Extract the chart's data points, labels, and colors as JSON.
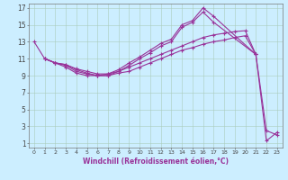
{
  "xlabel": "Windchill (Refroidissement éolien,°C)",
  "bg_color": "#cceeff",
  "grid_color": "#aaccbb",
  "line_color": "#993399",
  "xmin": 0,
  "xmax": 23,
  "ymin": 1,
  "ymax": 17,
  "yticks": [
    1,
    3,
    5,
    7,
    9,
    11,
    13,
    15,
    17
  ],
  "xticks": [
    0,
    1,
    2,
    3,
    4,
    5,
    6,
    7,
    8,
    9,
    10,
    11,
    12,
    13,
    14,
    15,
    16,
    17,
    18,
    19,
    20,
    21,
    22,
    23
  ],
  "line1_x": [
    0,
    1,
    2,
    3,
    4,
    5,
    6,
    7,
    8,
    9,
    10,
    11,
    12,
    13,
    14,
    15,
    16,
    17,
    18,
    19,
    20,
    21
  ],
  "line1_y": [
    13,
    11,
    10.5,
    10,
    9.3,
    9.0,
    9.0,
    9.0,
    9.3,
    9.5,
    10.0,
    10.5,
    11.0,
    11.5,
    12.0,
    12.3,
    12.7,
    13.0,
    13.2,
    13.5,
    13.7,
    11.5
  ],
  "line2_x": [
    1,
    2,
    3,
    4,
    5,
    6,
    7,
    8,
    9,
    10,
    11,
    12,
    13,
    14,
    15,
    16,
    17,
    21,
    22,
    23
  ],
  "line2_y": [
    11,
    10.5,
    10.3,
    9.7,
    9.3,
    9.0,
    9.2,
    9.7,
    10.5,
    11.2,
    12.0,
    12.8,
    13.3,
    15.0,
    15.5,
    17.0,
    16.0,
    11.5,
    2.5,
    2.0
  ],
  "line3_x": [
    1,
    2,
    3,
    4,
    5,
    6,
    7,
    8,
    9,
    10,
    11,
    12,
    13,
    14,
    15,
    16,
    17,
    21,
    22,
    23
  ],
  "line3_y": [
    11,
    10.5,
    10.2,
    9.5,
    9.2,
    9.0,
    9.0,
    9.5,
    10.2,
    11.0,
    11.7,
    12.5,
    13.0,
    14.7,
    15.3,
    16.5,
    15.3,
    11.5,
    1.3,
    2.3
  ],
  "line4_x": [
    1,
    2,
    3,
    4,
    5,
    6,
    7,
    8,
    9,
    10,
    11,
    12,
    13,
    14,
    15,
    16,
    17,
    18,
    19,
    20,
    21
  ],
  "line4_y": [
    11,
    10.5,
    10.3,
    9.8,
    9.5,
    9.2,
    9.2,
    9.5,
    10.0,
    10.5,
    11.0,
    11.5,
    12.0,
    12.5,
    13.0,
    13.5,
    13.8,
    14.0,
    14.2,
    14.3,
    11.5
  ]
}
